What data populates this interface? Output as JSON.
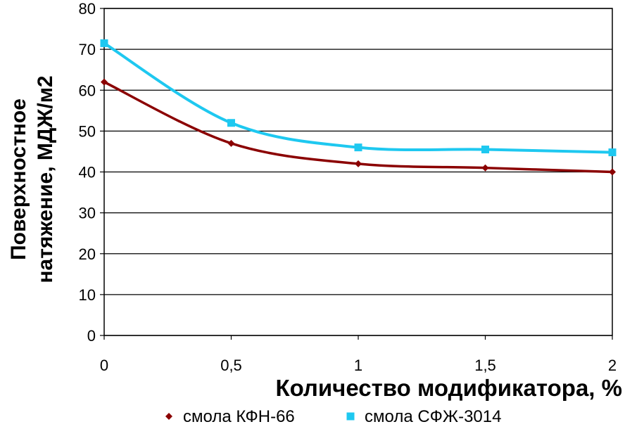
{
  "chart_data": {
    "type": "line",
    "x": [
      0,
      0.5,
      1,
      1.5,
      2
    ],
    "x_tick_labels": [
      "0",
      "0,5",
      "1",
      "1,5",
      "2"
    ],
    "y_tick_labels": [
      "0",
      "10",
      "20",
      "30",
      "40",
      "50",
      "60",
      "70",
      "80"
    ],
    "xlim": [
      0,
      2
    ],
    "ylim": [
      0,
      80
    ],
    "grid": "horizontal",
    "xlabel": "Количество модификатора, %",
    "ylabel_line1": "Поверхностное",
    "ylabel_line2": "натяжение, МДЖ/м2",
    "legend_position": "bottom",
    "series": [
      {
        "name": "смола КФН-66",
        "color": "#8b0000",
        "marker": "diamond",
        "values": [
          62,
          47,
          42,
          41,
          40
        ]
      },
      {
        "name": "смола СФЖ-3014",
        "color": "#1ec8f0",
        "marker": "square",
        "values": [
          71.5,
          52,
          46,
          45.5,
          44.8
        ]
      }
    ]
  }
}
